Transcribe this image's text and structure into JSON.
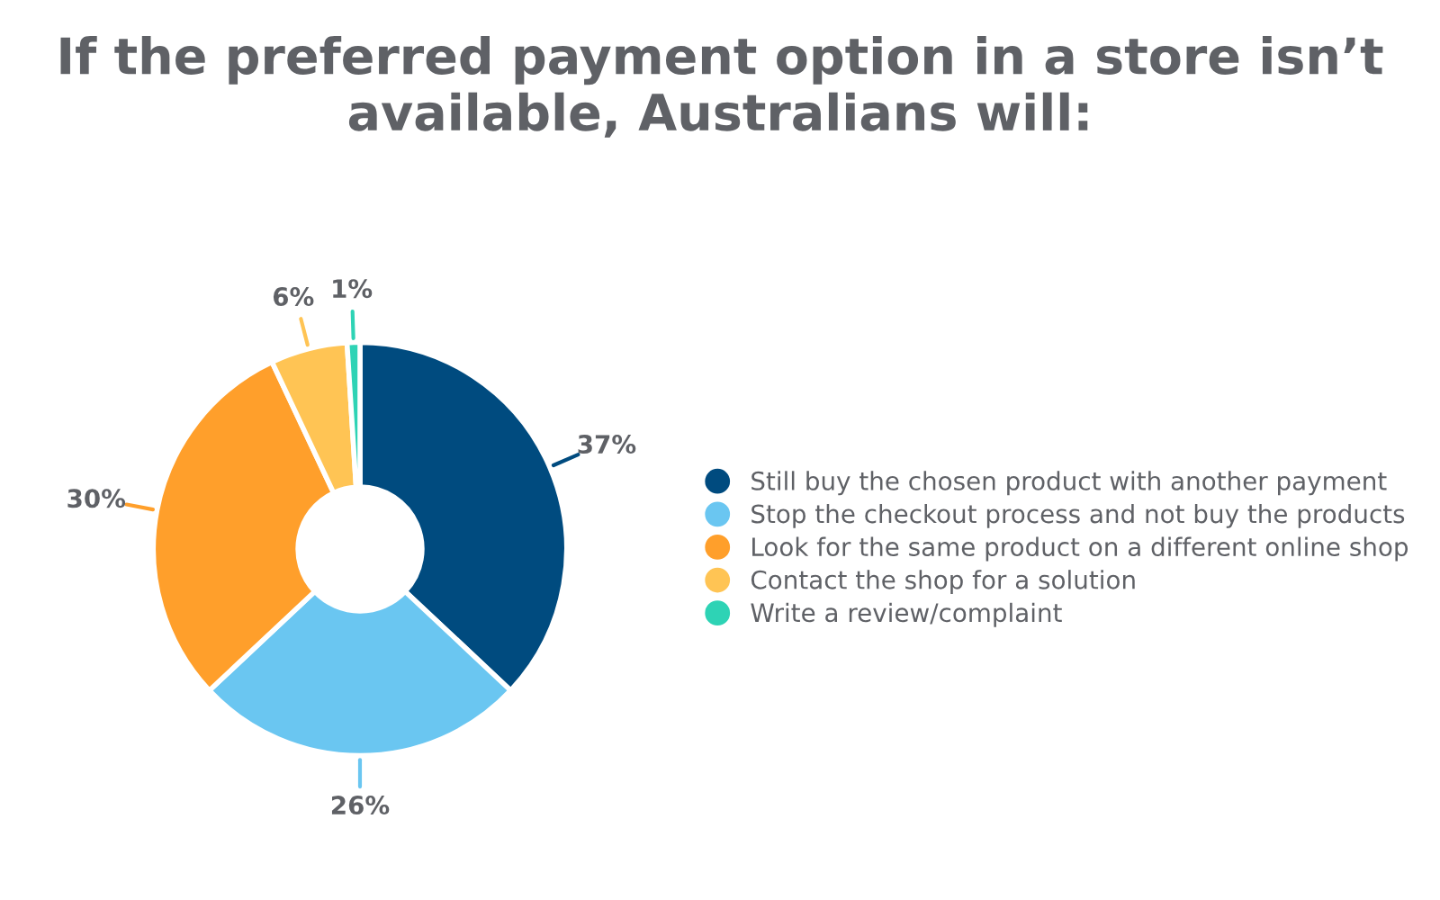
{
  "chart_data": {
    "type": "donut",
    "title": "If the preferred payment option in a store isn’t available, Australians will:",
    "categories": [
      "Still buy the chosen product with another payment",
      "Stop the checkout process and not buy the products",
      "Look for the same product on a different online shop",
      "Contact the shop for a solution",
      "Write a review/complaint"
    ],
    "values": [
      37,
      26,
      30,
      6,
      1
    ],
    "value_labels": [
      "37%",
      "26%",
      "30%",
      "6%",
      "1%"
    ],
    "colors": [
      "#004b7f",
      "#6ac6f1",
      "#ff9f2b",
      "#ffc454",
      "#2ed3b5"
    ],
    "legend": "right"
  }
}
